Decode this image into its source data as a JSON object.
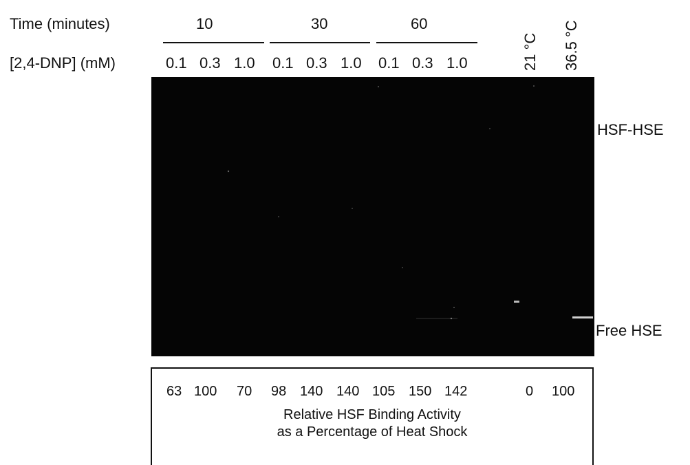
{
  "header": {
    "time_label": "Time (minutes)",
    "dose_label": "[2,4-DNP] (mM)",
    "time_groups": [
      "10",
      "30",
      "60"
    ],
    "concentrations": [
      "0.1",
      "0.3",
      "1.0",
      "0.1",
      "0.3",
      "1.0",
      "0.1",
      "0.3",
      "1.0"
    ],
    "control_temps": [
      "21 °C",
      "36.5 °C"
    ]
  },
  "gel": {
    "band_labels": [
      "HSF-HSE",
      "Free HSE"
    ],
    "background_color": "#050505"
  },
  "activity": {
    "values": [
      "63",
      "100",
      "70",
      "98",
      "140",
      "140",
      "105",
      "150",
      "142",
      "0",
      "100"
    ],
    "caption_line1": "Relative HSF Binding Activity",
    "caption_line2": "as a Percentage of Heat Shock"
  }
}
